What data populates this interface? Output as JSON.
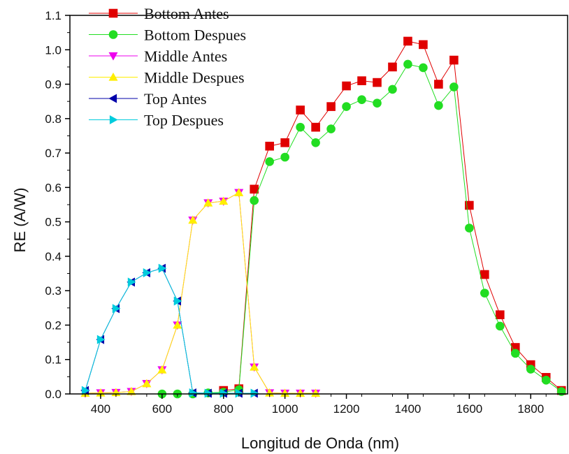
{
  "chart_data": {
    "type": "line",
    "xlabel": "Longitud de Onda (nm)",
    "ylabel": "RE (A/W)",
    "xlim": [
      300,
      1920
    ],
    "ylim": [
      0,
      1.1
    ],
    "xticks": [
      400,
      600,
      800,
      1000,
      1200,
      1400,
      1600,
      1800
    ],
    "yticks": [
      0.0,
      0.1,
      0.2,
      0.3,
      0.4,
      0.5,
      0.6,
      0.7,
      0.8,
      0.9,
      1.0,
      1.1
    ],
    "grid": false,
    "legend_position": "top-left",
    "series": [
      {
        "name": "Bottom Antes",
        "color": "#e00000",
        "marker": "square",
        "x": [
          800,
          850,
          900,
          950,
          1000,
          1050,
          1100,
          1150,
          1200,
          1250,
          1300,
          1350,
          1400,
          1450,
          1500,
          1550,
          1600,
          1650,
          1700,
          1750,
          1800,
          1850,
          1900
        ],
        "y": [
          0.01,
          0.015,
          0.595,
          0.72,
          0.73,
          0.825,
          0.775,
          0.835,
          0.895,
          0.91,
          0.905,
          0.95,
          1.025,
          1.015,
          0.9,
          0.97,
          0.548,
          0.347,
          0.23,
          0.135,
          0.085,
          0.048,
          0.01
        ]
      },
      {
        "name": "Bottom Despues",
        "color": "#22dd22",
        "marker": "circle",
        "x": [
          600,
          650,
          700,
          750,
          800,
          850,
          900,
          950,
          1000,
          1050,
          1100,
          1150,
          1200,
          1250,
          1300,
          1350,
          1400,
          1450,
          1500,
          1550,
          1600,
          1650,
          1700,
          1750,
          1800,
          1850,
          1900
        ],
        "y": [
          0.0,
          0.0,
          0.0,
          0.003,
          0.005,
          0.012,
          0.562,
          0.675,
          0.688,
          0.775,
          0.73,
          0.77,
          0.835,
          0.855,
          0.845,
          0.885,
          0.958,
          0.948,
          0.838,
          0.892,
          0.482,
          0.293,
          0.197,
          0.118,
          0.072,
          0.04,
          0.007
        ]
      },
      {
        "name": "Middle Antes",
        "color": "#ee00ee",
        "marker": "triangle-down",
        "x": [
          350,
          400,
          450,
          500,
          550,
          600,
          650,
          700,
          750,
          800,
          850,
          900,
          950,
          1000,
          1050,
          1100
        ],
        "y": [
          0.002,
          0.003,
          0.004,
          0.007,
          0.03,
          0.07,
          0.2,
          0.505,
          0.555,
          0.56,
          0.585,
          0.078,
          0.003,
          0.002,
          0.002,
          0.002
        ]
      },
      {
        "name": "Middle Despues",
        "color": "#ffee00",
        "marker": "triangle-up",
        "x": [
          350,
          400,
          450,
          500,
          550,
          600,
          650,
          700,
          750,
          800,
          850,
          900,
          950,
          1000,
          1050,
          1100
        ],
        "y": [
          0.002,
          0.003,
          0.004,
          0.007,
          0.03,
          0.07,
          0.2,
          0.505,
          0.555,
          0.56,
          0.585,
          0.078,
          0.003,
          0.002,
          0.002,
          0.002
        ]
      },
      {
        "name": "Top Antes",
        "color": "#0000aa",
        "marker": "triangle-left",
        "x": [
          350,
          400,
          450,
          500,
          550,
          600,
          650,
          700,
          750,
          800,
          850,
          900
        ],
        "y": [
          0.01,
          0.158,
          0.248,
          0.325,
          0.352,
          0.365,
          0.27,
          0.003,
          0.002,
          0.002,
          0.002,
          0.002
        ]
      },
      {
        "name": "Top Despues",
        "color": "#00ccdd",
        "marker": "triangle-right",
        "x": [
          350,
          400,
          450,
          500,
          550,
          600,
          650,
          700,
          750,
          800,
          850,
          900
        ],
        "y": [
          0.01,
          0.158,
          0.248,
          0.325,
          0.352,
          0.365,
          0.27,
          0.003,
          0.002,
          0.002,
          0.002,
          0.002
        ]
      }
    ]
  }
}
